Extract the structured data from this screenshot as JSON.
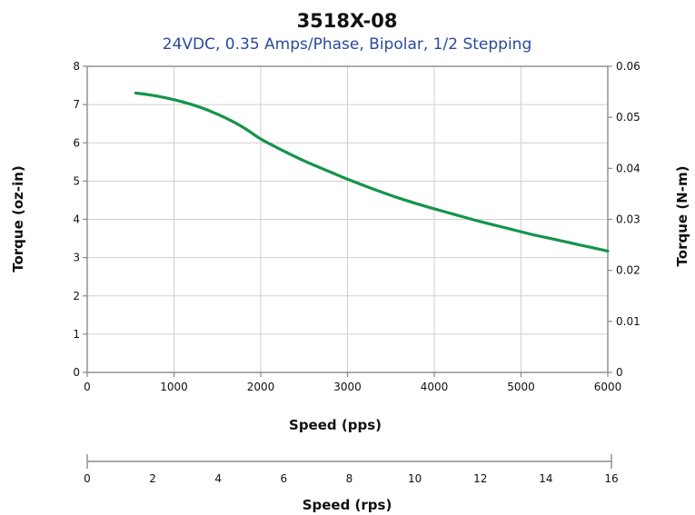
{
  "chart_data": {
    "type": "line",
    "title": "3518X-08",
    "subtitle": "24VDC, 0.35 Amps/Phase, Bipolar, 1/2 Stepping",
    "subtitle_color": "#2a4a9c",
    "line_color": "#14944a",
    "grid": true,
    "xlabel": "Speed (pps)",
    "xlim": [
      0,
      6000
    ],
    "xticks": [
      0,
      1000,
      2000,
      3000,
      4000,
      5000,
      6000
    ],
    "ylabel": "Torque (oz-in)",
    "ylim": [
      0,
      8
    ],
    "yticks": [
      0,
      1,
      2,
      3,
      4,
      5,
      6,
      7,
      8
    ],
    "y2label": "Torque (N-m)",
    "y2lim": [
      0,
      0.06
    ],
    "y2ticks": [
      "0",
      "0.01",
      "0.02",
      "0.03",
      "0.04",
      "0.05",
      "0.06"
    ],
    "x2label": "Speed (rps)",
    "x2lim": [
      0,
      16
    ],
    "x2ticks": [
      0,
      2,
      4,
      6,
      8,
      10,
      12,
      14,
      16
    ],
    "series": [
      {
        "x": [
          560,
          700,
          900,
          1100,
          1300,
          1500,
          1700,
          1850,
          2000,
          2200,
          2500,
          2800,
          3000,
          3300,
          3600,
          3900,
          4200,
          4500,
          4800,
          5100,
          5400,
          5700,
          6000
        ],
        "y": [
          7.3,
          7.26,
          7.18,
          7.07,
          6.93,
          6.75,
          6.53,
          6.33,
          6.1,
          5.86,
          5.53,
          5.24,
          5.05,
          4.79,
          4.55,
          4.34,
          4.15,
          3.96,
          3.79,
          3.62,
          3.47,
          3.32,
          3.17
        ]
      }
    ]
  }
}
